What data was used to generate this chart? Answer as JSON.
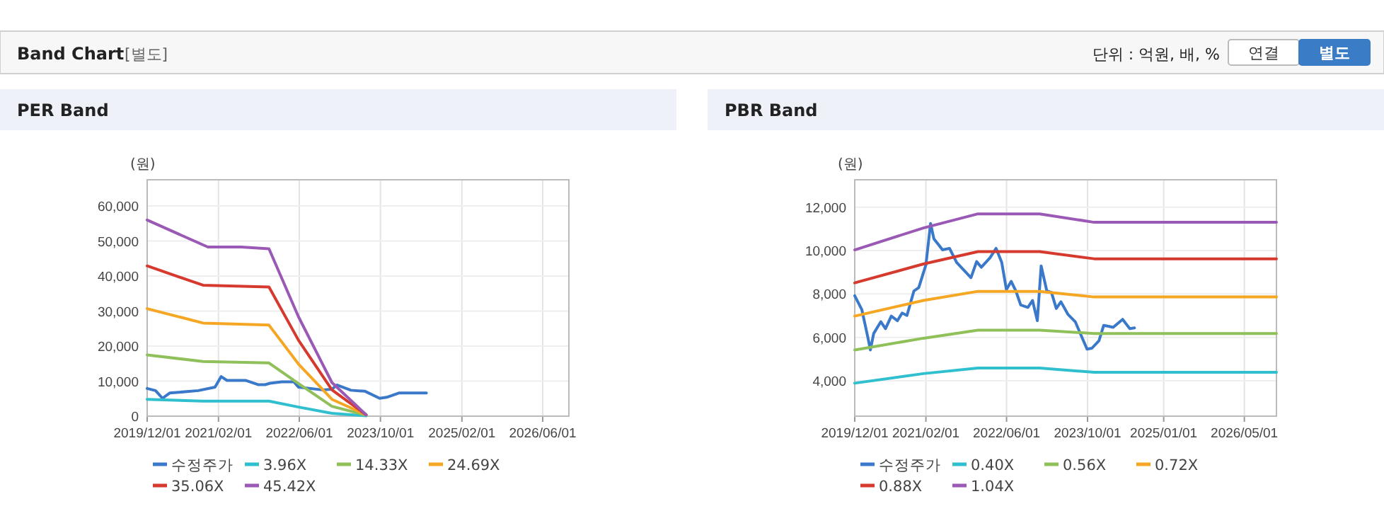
{
  "chart_data": [
    {
      "type": "line",
      "title": "PER Band",
      "ylabel": "(원)",
      "annotations": [
        "Band Chart",
        "[별도]",
        "단위 : 억원, 배, %",
        "연결",
        "별도"
      ],
      "xlim": [
        "2019-12-01",
        "2026-11-05"
      ],
      "ylim": [
        0,
        67500
      ],
      "xticks": [
        {
          "value": "2019-12-01",
          "label": "2019/12/01"
        },
        {
          "value": "2021-02-01",
          "label": "2021/02/01"
        },
        {
          "value": "2022-06-01",
          "label": "2022/06/01"
        },
        {
          "value": "2023-10-01",
          "label": "2023/10/01"
        },
        {
          "value": "2025-02-01",
          "label": "2025/02/01"
        },
        {
          "value": "2026-06-01",
          "label": "2026/06/01"
        }
      ],
      "yticks": [
        {
          "value": 0,
          "label": "0"
        },
        {
          "value": 10000,
          "label": "10,000"
        },
        {
          "value": 20000,
          "label": "20,000"
        },
        {
          "value": 30000,
          "label": "30,000"
        },
        {
          "value": 40000,
          "label": "40,000"
        },
        {
          "value": 50000,
          "label": "50,000"
        },
        {
          "value": 60000,
          "label": "60,000"
        }
      ],
      "grid": true,
      "legend": "bottom",
      "series": [
        {
          "name": "수정주가",
          "color": "#3a78c9",
          "x": [
            "2019-12-01",
            "2020-01-20",
            "2020-03-02",
            "2020-04-14",
            "2020-10-03",
            "2021-01-11",
            "2021-02-17",
            "2021-03-24",
            "2021-07-16",
            "2021-09-26",
            "2021-11-08",
            "2021-12-07",
            "2022-02-16",
            "2022-04-29",
            "2022-05-27",
            "2022-10-18",
            "2022-12-14",
            "2023-01-12",
            "2023-04-07",
            "2023-07-01",
            "2023-09-26",
            "2023-11-08",
            "2024-01-19",
            "2024-07-03"
          ],
          "values": [
            7900,
            7300,
            5100,
            6600,
            7300,
            8300,
            11300,
            10200,
            10200,
            9000,
            9000,
            9400,
            9800,
            9800,
            8300,
            7500,
            7700,
            8900,
            7400,
            7100,
            5100,
            5400,
            6600,
            6600
          ]
        },
        {
          "name": "3.96X",
          "color": "#2fbfcf",
          "x": [
            "2019-12-01",
            "2020-10-31",
            "2021-12-01",
            "2022-05-27",
            "2022-12-14",
            "2023-07-07"
          ],
          "values": [
            4800,
            4300,
            4300,
            2600,
            800,
            100
          ]
        },
        {
          "name": "14.33X",
          "color": "#8fc05a",
          "x": [
            "2019-12-01",
            "2020-10-31",
            "2021-12-01",
            "2022-05-27",
            "2022-12-14",
            "2023-07-07"
          ],
          "values": [
            17500,
            15600,
            15200,
            9300,
            2800,
            300
          ]
        },
        {
          "name": "24.69X",
          "color": "#f5a623",
          "x": [
            "2019-12-01",
            "2020-10-31",
            "2021-12-01",
            "2022-05-27",
            "2022-12-14",
            "2023-07-07"
          ],
          "values": [
            30700,
            26600,
            26000,
            14900,
            4800,
            400
          ]
        },
        {
          "name": "35.06X",
          "color": "#d63a2e",
          "x": [
            "2019-12-01",
            "2020-10-31",
            "2021-12-01",
            "2022-05-27",
            "2022-12-14",
            "2023-07-07"
          ],
          "values": [
            42900,
            37400,
            36900,
            21700,
            7500,
            400
          ]
        },
        {
          "name": "45.42X",
          "color": "#9b59b6",
          "x": [
            "2019-12-01",
            "2020-11-29",
            "2021-06-17",
            "2021-12-01",
            "2022-05-27",
            "2022-12-14",
            "2023-07-07"
          ],
          "values": [
            56000,
            48300,
            48300,
            47800,
            28400,
            9600,
            400
          ]
        }
      ]
    },
    {
      "type": "line",
      "title": "PBR Band",
      "ylabel": "(원)",
      "xlim": [
        "2019-12-01",
        "2026-11-10"
      ],
      "ylim": [
        2370,
        13260
      ],
      "xticks": [
        {
          "value": "2019-12-01",
          "label": "2019/12/01"
        },
        {
          "value": "2021-02-01",
          "label": "2021/02/01"
        },
        {
          "value": "2022-06-01",
          "label": "2022/06/01"
        },
        {
          "value": "2023-10-01",
          "label": "2023/10/01"
        },
        {
          "value": "2025-01-01",
          "label": "2025/01/01"
        },
        {
          "value": "2026-05-01",
          "label": "2026/05/01"
        }
      ],
      "yticks": [
        {
          "value": 4000,
          "label": "4,000"
        },
        {
          "value": 6000,
          "label": "6,000"
        },
        {
          "value": 8000,
          "label": "8,000"
        },
        {
          "value": 10000,
          "label": "10,000"
        },
        {
          "value": 12000,
          "label": "12,000"
        }
      ],
      "grid": true,
      "legend": "bottom",
      "series": [
        {
          "name": "수정주가",
          "color": "#3a78c9",
          "x": [
            "2019-12-01",
            "2020-01-13",
            "2020-02-19",
            "2020-03-04",
            "2020-03-24",
            "2020-05-06",
            "2020-06-03",
            "2020-07-08",
            "2020-08-14",
            "2020-09-11",
            "2020-10-10",
            "2020-11-21",
            "2020-12-20",
            "2021-02-01",
            "2021-03-01",
            "2021-03-21",
            "2021-04-13",
            "2021-05-12",
            "2021-06-23",
            "2021-08-05",
            "2021-10-30",
            "2021-12-03",
            "2021-12-31",
            "2022-02-21",
            "2022-03-30",
            "2022-05-03",
            "2022-05-31",
            "2022-06-29",
            "2022-07-27",
            "2022-08-25",
            "2022-10-07",
            "2022-11-04",
            "2022-12-03",
            "2022-12-26",
            "2023-01-29",
            "2023-02-26",
            "2023-03-27",
            "2023-04-24",
            "2023-06-06",
            "2023-07-19",
            "2023-09-28",
            "2023-10-27",
            "2023-12-09",
            "2024-01-06",
            "2024-02-04",
            "2024-03-03",
            "2024-04-29",
            "2024-06-11",
            "2024-07-09"
          ],
          "values": [
            7920,
            7270,
            5960,
            5420,
            6180,
            6720,
            6400,
            6980,
            6770,
            7120,
            7010,
            8140,
            8290,
            9340,
            11250,
            10540,
            10320,
            10030,
            10100,
            9450,
            8750,
            9490,
            9230,
            9660,
            10100,
            9450,
            8200,
            8580,
            8140,
            7490,
            7380,
            7700,
            6770,
            9290,
            8140,
            8070,
            7330,
            7640,
            7050,
            6720,
            5460,
            5500,
            5850,
            6550,
            6510,
            6460,
            6830,
            6400,
            6440
          ]
        },
        {
          "name": "0.40X",
          "color": "#2fbfcf",
          "x": [
            "2019-12-01",
            "2021-01-17",
            "2021-12-11",
            "2022-12-17",
            "2023-11-10",
            "2026-11-10"
          ],
          "values": [
            3890,
            4330,
            4590,
            4590,
            4390,
            4390
          ]
        },
        {
          "name": "0.56X",
          "color": "#8fc05a",
          "x": [
            "2019-12-01",
            "2021-01-17",
            "2021-12-11",
            "2022-12-17",
            "2023-11-10",
            "2026-11-10"
          ],
          "values": [
            5420,
            5960,
            6330,
            6330,
            6180,
            6180
          ]
        },
        {
          "name": "0.72X",
          "color": "#f5a623",
          "x": [
            "2019-12-01",
            "2021-01-17",
            "2021-12-11",
            "2022-12-17",
            "2023-11-10",
            "2026-11-10"
          ],
          "values": [
            6980,
            7700,
            8120,
            8120,
            7860,
            7860
          ]
        },
        {
          "name": "0.88X",
          "color": "#d63a2e",
          "x": [
            "2019-12-01",
            "2021-01-17",
            "2021-12-11",
            "2022-12-17",
            "2023-11-10",
            "2026-11-10"
          ],
          "values": [
            8510,
            9380,
            9950,
            9950,
            9620,
            9620
          ]
        },
        {
          "name": "1.04X",
          "color": "#9b59b6",
          "x": [
            "2019-12-01",
            "2021-01-17",
            "2021-12-11",
            "2022-12-17",
            "2023-11-10",
            "2026-11-10"
          ],
          "values": [
            10030,
            11040,
            11690,
            11690,
            11300,
            11300
          ]
        }
      ]
    }
  ]
}
